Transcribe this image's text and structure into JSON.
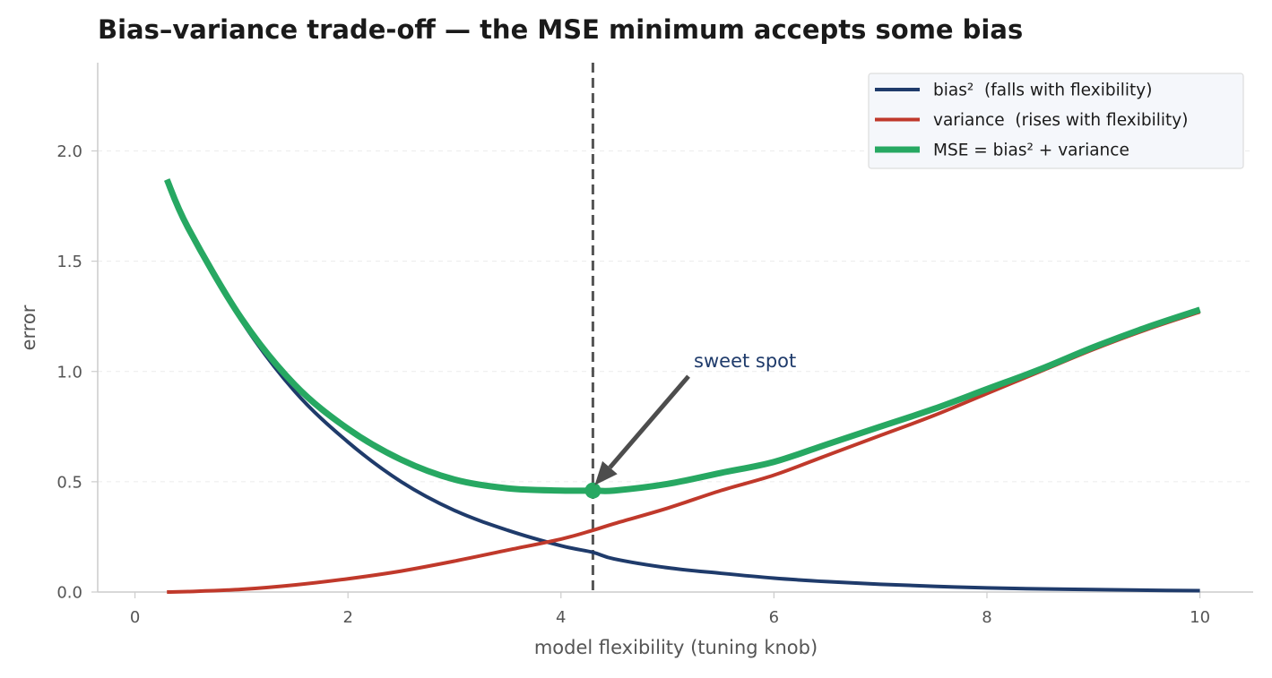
{
  "chart_data": {
    "type": "line",
    "title": "Bias–variance trade-off — the MSE minimum accepts some bias",
    "xlabel": "model flexibility (tuning knob)",
    "ylabel": "error",
    "xlim": [
      -0.35,
      10.5
    ],
    "ylim": [
      0,
      2.4
    ],
    "x_ticks": [
      "0",
      "2",
      "4",
      "6",
      "8",
      "10"
    ],
    "y_ticks": [
      "0.0",
      "0.5",
      "1.0",
      "1.5",
      "2.0"
    ],
    "grid": "horizontal dashed",
    "legend_position": "top-right",
    "x": [
      0.3,
      0.5,
      1,
      1.5,
      2,
      2.5,
      3,
      3.5,
      4,
      4.3,
      4.5,
      5,
      5.5,
      6,
      6.5,
      7,
      7.5,
      8,
      8.5,
      9,
      9.5,
      10
    ],
    "series": [
      {
        "name": "bias²  (falls with flexibility)",
        "color": "#1f3b6b",
        "values": [
          1.87,
          1.65,
          1.23,
          0.91,
          0.68,
          0.5,
          0.37,
          0.28,
          0.21,
          0.18,
          0.15,
          0.11,
          0.085,
          0.063,
          0.047,
          0.035,
          0.026,
          0.019,
          0.014,
          0.011,
          0.008,
          0.006
        ]
      },
      {
        "name": "variance  (rises with flexibility)",
        "color": "#c0392b",
        "values": [
          0.0,
          0.002,
          0.012,
          0.032,
          0.06,
          0.095,
          0.14,
          0.19,
          0.24,
          0.28,
          0.31,
          0.38,
          0.46,
          0.53,
          0.62,
          0.71,
          0.8,
          0.9,
          1.0,
          1.1,
          1.19,
          1.27
        ]
      },
      {
        "name": "MSE = bias² + variance",
        "color": "#27a862",
        "values": [
          1.87,
          1.65,
          1.24,
          0.94,
          0.74,
          0.6,
          0.51,
          0.47,
          0.46,
          0.46,
          0.46,
          0.49,
          0.54,
          0.59,
          0.67,
          0.75,
          0.83,
          0.92,
          1.01,
          1.11,
          1.2,
          1.28
        ]
      }
    ],
    "optimum": {
      "x": 4.3,
      "y": 0.46
    },
    "annotation": {
      "text": "sweet spot",
      "x": 5.45,
      "y": 0.97
    }
  }
}
